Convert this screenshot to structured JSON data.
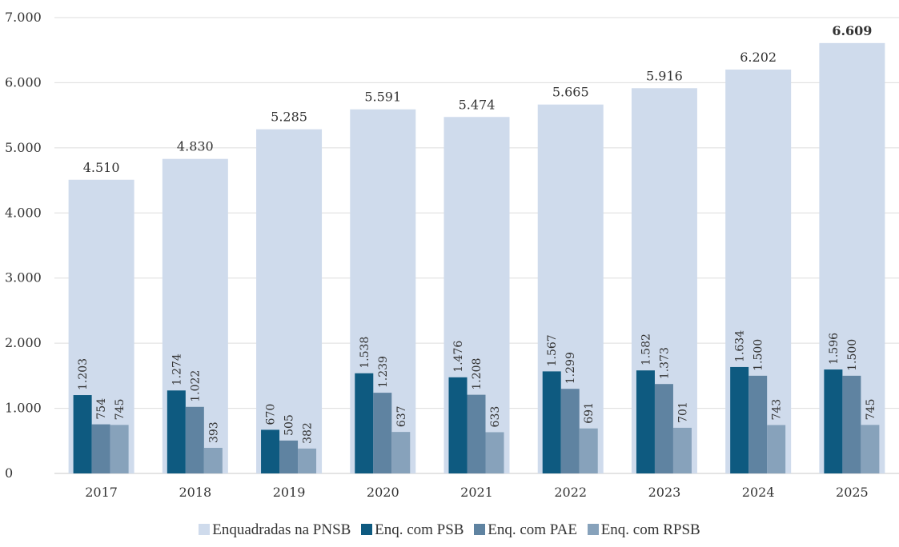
{
  "chart_data": {
    "type": "bar",
    "title": "",
    "xlabel": "",
    "ylabel": "",
    "ylim": [
      0,
      7000
    ],
    "y_ticks": [
      "0",
      "1.000",
      "2.000",
      "3.000",
      "4.000",
      "5.000",
      "6.000",
      "7.000"
    ],
    "y_tick_values": [
      0,
      1000,
      2000,
      3000,
      4000,
      5000,
      6000,
      7000
    ],
    "grid": true,
    "legend_position": "bottom",
    "categories": [
      "2017",
      "2018",
      "2019",
      "2020",
      "2021",
      "2022",
      "2023",
      "2024",
      "2025"
    ],
    "series": [
      {
        "name": "Enquadradas na PNSB",
        "color": "#cfdbec",
        "values": [
          4510,
          4830,
          5285,
          5591,
          5474,
          5665,
          5916,
          6202,
          6609
        ],
        "labels": [
          "4.510",
          "4.830",
          "5.285",
          "5.591",
          "5.474",
          "5.665",
          "5.916",
          "6.202",
          "6.609"
        ]
      },
      {
        "name": "Enq. com PSB",
        "color": "#0e5a80",
        "values": [
          1203,
          1274,
          670,
          1538,
          1476,
          1567,
          1582,
          1634,
          1596
        ],
        "labels": [
          "1.203",
          "1.274",
          "670",
          "1.538",
          "1.476",
          "1.567",
          "1.582",
          "1.634",
          "1.596"
        ]
      },
      {
        "name": "Enq. com PAE",
        "color": "#5f83a1",
        "values": [
          754,
          1022,
          505,
          1239,
          1208,
          1299,
          1373,
          1500,
          1500
        ],
        "labels": [
          "754",
          "1.022",
          "505",
          "1.239",
          "1.208",
          "1.299",
          "1.373",
          "1.500",
          "1.500"
        ]
      },
      {
        "name": "Enq. com RPSB",
        "color": "#87a2bb",
        "values": [
          745,
          393,
          382,
          637,
          633,
          691,
          701,
          743,
          745
        ],
        "labels": [
          "745",
          "393",
          "382",
          "637",
          "633",
          "691",
          "701",
          "743",
          "745"
        ]
      }
    ],
    "bold_last_total": true
  }
}
